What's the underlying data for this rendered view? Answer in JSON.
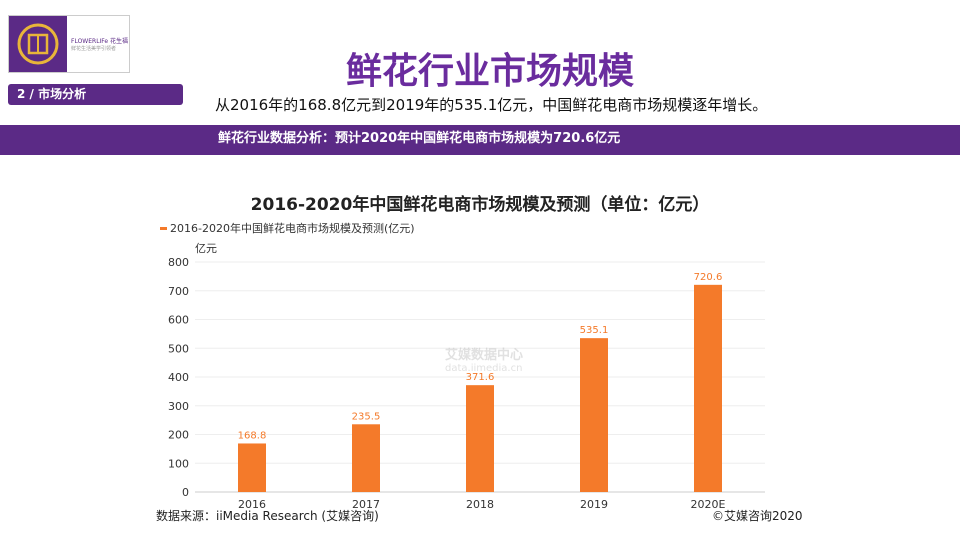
{
  "logo": {
    "brand": "FLOWERLIFe 花生福",
    "tagline": "鲜花生活美学引领者"
  },
  "section_label": "2 / 市场分析",
  "title": "鲜花行业市场规模",
  "subtitle": "从2016年的168.8亿元到2019年的535.1亿元，中国鲜花电商市场规模逐年增长。",
  "band_text": "鲜花行业数据分析：预计2020年中国鲜花电商市场规模为720.6亿元",
  "watermark": {
    "cn": "艾媒数据中心",
    "url": "data.iimedia.cn"
  },
  "source": "数据来源：iiMedia Research (艾媒咨询)",
  "copyright": "©艾媒咨询2020",
  "chart_data": {
    "type": "bar",
    "title": "2016-2020年中国鲜花电商市场规模及预测（单位：亿元）",
    "ylabel": "亿元",
    "categories": [
      "2016",
      "2017",
      "2018",
      "2019",
      "2020E"
    ],
    "series": [
      {
        "name": "2016-2020年中国鲜花电商市场规模及预测(亿元)",
        "values": [
          168.8,
          235.5,
          371.6,
          535.1,
          720.6
        ],
        "color": "#f47a2a"
      }
    ],
    "ylim": [
      0,
      800
    ],
    "yticks": [
      0,
      100,
      200,
      300,
      400,
      500,
      600,
      700,
      800
    ],
    "grid": true,
    "legend": "top-left"
  }
}
